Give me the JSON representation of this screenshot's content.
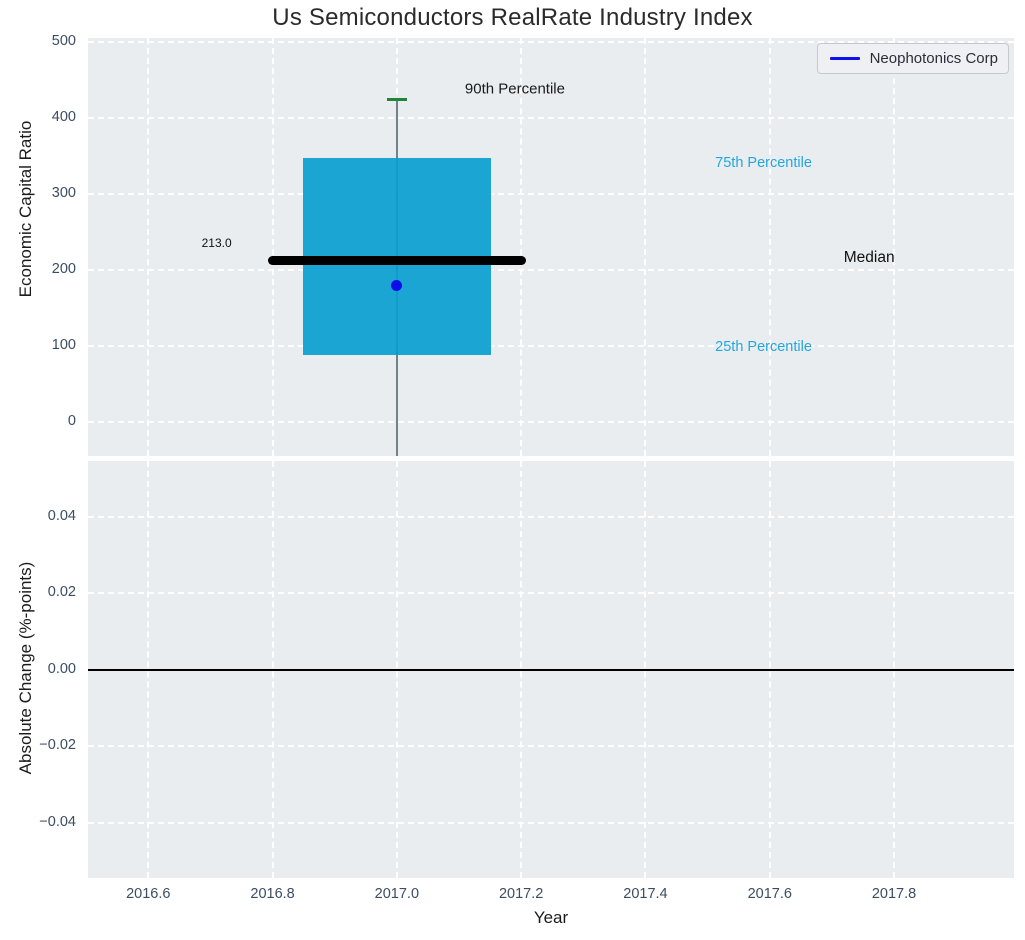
{
  "title": "Us Semiconductors RealRate Industry Index",
  "legend": {
    "label": "Neophotonics Corp"
  },
  "chart_data": {
    "type": "box",
    "title": "Us Semiconductors RealRate Industry Index",
    "x": {
      "label": "Year",
      "lim": [
        2016.503,
        2017.993
      ],
      "ticks": [
        2016.6,
        2016.8,
        2017.0,
        2017.2,
        2017.4,
        2017.6,
        2017.8
      ],
      "tick_labels": [
        "2016.6",
        "2016.8",
        "2017.0",
        "2017.2",
        "2017.4",
        "2017.6",
        "2017.8"
      ]
    },
    "top_axis": {
      "ylabel": "Economic Capital Ratio",
      "ylim": [
        -44.7,
        505.3
      ],
      "yticks": [
        0,
        100,
        200,
        300,
        400,
        500
      ],
      "ytick_labels": [
        "0",
        "100",
        "200",
        "300",
        "400",
        "500"
      ],
      "grid": true
    },
    "bottom_axis": {
      "ylabel": "Absolute Change (%-points)",
      "ylim": [
        -0.0544,
        0.0546
      ],
      "yticks": [
        0.04,
        0.02,
        0.0,
        -0.02,
        -0.04
      ],
      "ytick_labels": [
        "0.04",
        "0.02",
        "0.00",
        "−0.02",
        "−0.04"
      ],
      "zero_line": 0.0,
      "grid": true
    },
    "box": {
      "x": 2017.0,
      "p90": 425,
      "p75": 347,
      "median": 213,
      "p25": 88,
      "whisker_low_clipped": -60,
      "median_label": "213.0",
      "box_halfwidth": 0.151,
      "median_halfwidth": 0.208,
      "cap_halfwidth": 0.016
    },
    "company_point": {
      "name": "Neophotonics Corp",
      "x": 2017.0,
      "y": 180
    },
    "annotations": [
      {
        "text": "90th Percentile",
        "x": 2017.19,
        "y": 438,
        "color": "#1a1a1a",
        "size": 15
      },
      {
        "text": "75th Percentile",
        "x": 2017.59,
        "y": 341,
        "color": "#22a7dc",
        "size": 14.5
      },
      {
        "text": "Median",
        "x": 2017.76,
        "y": 216,
        "color": "#111111",
        "size": 15.5
      },
      {
        "text": "25th Percentile",
        "x": 2017.59,
        "y": 99,
        "color": "#22a7dc",
        "size": 14.5
      },
      {
        "text": "213.0",
        "x": 2016.71,
        "y": 236,
        "color": "#111111",
        "size": 12
      }
    ],
    "colors": {
      "plot_bg": "#e9edf0",
      "grid": "#ffffff",
      "box_fill": "#089ed0",
      "median_line": "#000000",
      "whisker": "#56707a",
      "cap": "#1e8636",
      "point": "#0d0dea",
      "tick_label": "#3b4d63",
      "axis_label": "#1c1c1c",
      "title": "#2b2b2b",
      "zero_line": "#000000",
      "legend_bg": "#eef0f3",
      "legend_border": "#c6c9cc",
      "legend_text": "#2b2e38",
      "legend_line": "#1111ee"
    }
  }
}
